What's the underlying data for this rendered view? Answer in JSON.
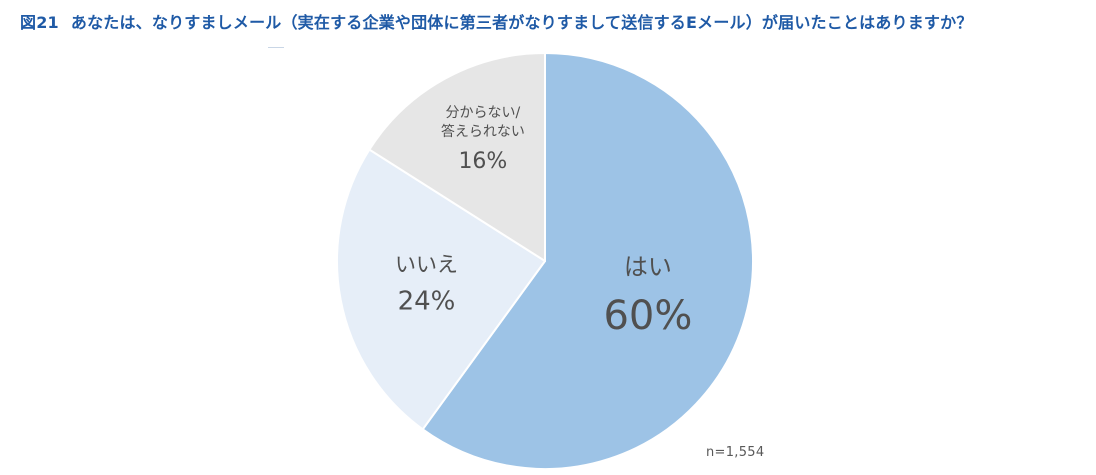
{
  "title": {
    "figure_number": "図21",
    "text": "あなたは、なりすましメール（実在する企業や団体に第三者がなりすまして送信するEメール）が届いたことはありますか？"
  },
  "note": "n=1,554",
  "colors": {
    "title": "#1f5aa6",
    "label_text": "#505050",
    "slice_border": "#ffffff"
  },
  "chart_data": {
    "type": "pie",
    "start_angle_deg": 0,
    "direction": "clockwise",
    "n": "n=1,554",
    "slices": [
      {
        "label": "はい",
        "label_lines": [
          "はい"
        ],
        "value": 60,
        "display_value": "60%",
        "color": "#9dc3e6"
      },
      {
        "label": "いいえ",
        "label_lines": [
          "いいえ"
        ],
        "value": 24,
        "display_value": "24%",
        "color": "#e6eef8"
      },
      {
        "label": "分からない/答えられない",
        "label_lines": [
          "分からない/",
          "答えられない"
        ],
        "value": 16,
        "display_value": "16%",
        "color": "#e6e6e6"
      }
    ]
  }
}
